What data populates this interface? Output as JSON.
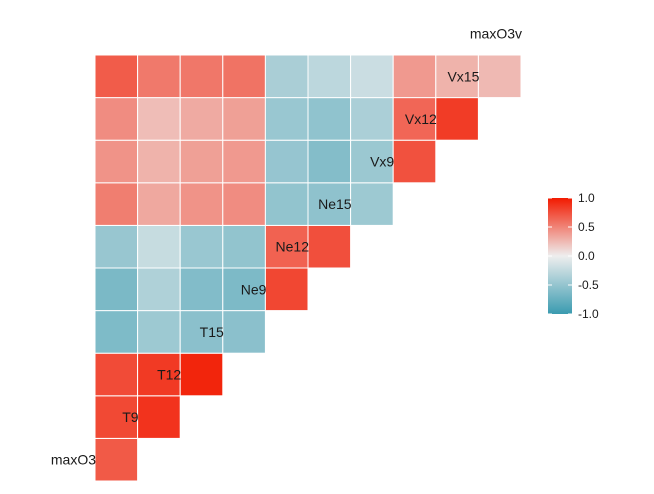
{
  "chart_data": {
    "type": "heatmap",
    "subtype": "lower-triangle-correlation",
    "variables": [
      "maxO3",
      "T9",
      "T12",
      "T15",
      "Ne9",
      "Ne12",
      "Ne15",
      "Vx9",
      "Vx12",
      "Vx15",
      "maxO3v"
    ],
    "value_range": [
      -1,
      1
    ],
    "matrix": [
      [],
      [
        0.7
      ],
      [
        0.78,
        0.88
      ],
      [
        0.77,
        0.85,
        0.95
      ],
      [
        -0.62,
        -0.45,
        -0.55,
        -0.55
      ],
      [
        -0.64,
        -0.35,
        -0.6,
        -0.63,
        0.79
      ],
      [
        -0.48,
        -0.22,
        -0.47,
        -0.51,
        0.66,
        0.75
      ],
      [
        0.53,
        0.33,
        0.43,
        0.46,
        -0.51,
        -0.53,
        -0.45
      ],
      [
        0.43,
        0.28,
        0.37,
        0.4,
        -0.49,
        -0.59,
        -0.46,
        0.74
      ],
      [
        0.46,
        0.23,
        0.32,
        0.37,
        -0.47,
        -0.52,
        -0.37,
        0.64,
        0.84
      ],
      [
        0.69,
        0.55,
        0.56,
        0.58,
        -0.38,
        -0.28,
        -0.2,
        0.4,
        0.28,
        0.25
      ]
    ],
    "colors": {
      "low": "#3A9BB0",
      "mid": "#EEEEEE",
      "high": "#F21A00"
    },
    "legend": {
      "position": "right",
      "ticks": [
        {
          "value": 1.0,
          "label": "1.0"
        },
        {
          "value": 0.5,
          "label": "0.5"
        },
        {
          "value": 0.0,
          "label": "0.0"
        },
        {
          "value": -0.5,
          "label": "-0.5"
        },
        {
          "value": -1.0,
          "label": "-1.0"
        }
      ]
    }
  }
}
